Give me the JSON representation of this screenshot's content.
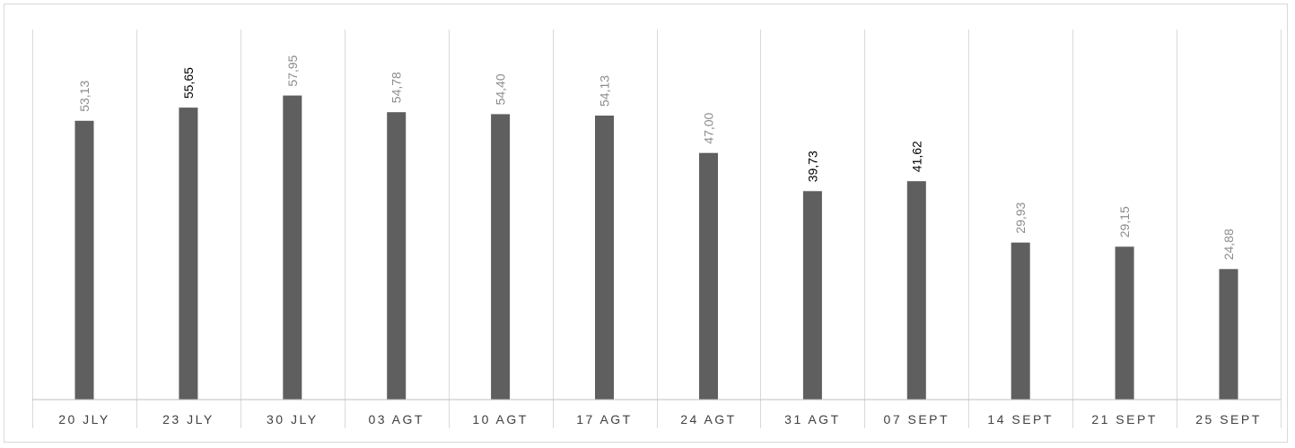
{
  "chart_data": {
    "type": "bar",
    "title": "",
    "xlabel": "",
    "ylabel": "",
    "ylim": [
      0,
      70
    ],
    "grid": "vertical-category-separators",
    "legend": "none",
    "bar_color": "#5f5f5f",
    "categories": [
      "20 JLY",
      "23 JLY",
      "30 JLY",
      "03 AGT",
      "10 AGT",
      "17 AGT",
      "24 AGT",
      "31 AGT",
      "07 SEPT",
      "14 SEPT",
      "21 SEPT",
      "25 SEPT"
    ],
    "values": [
      53.13,
      55.65,
      57.95,
      54.78,
      54.4,
      54.13,
      47.0,
      39.73,
      41.62,
      29.93,
      29.15,
      24.88
    ],
    "data_labels": [
      "53,13",
      "55,65",
      "57,95",
      "54,78",
      "54,40",
      "54,13",
      "47,00",
      "39,73",
      "41,62",
      "29,93",
      "29,15",
      "24,88"
    ],
    "emphasized_labels": [
      1,
      7,
      8
    ],
    "label_colors": {
      "default": "#8c8c8c",
      "emphasized": "#000000"
    }
  }
}
